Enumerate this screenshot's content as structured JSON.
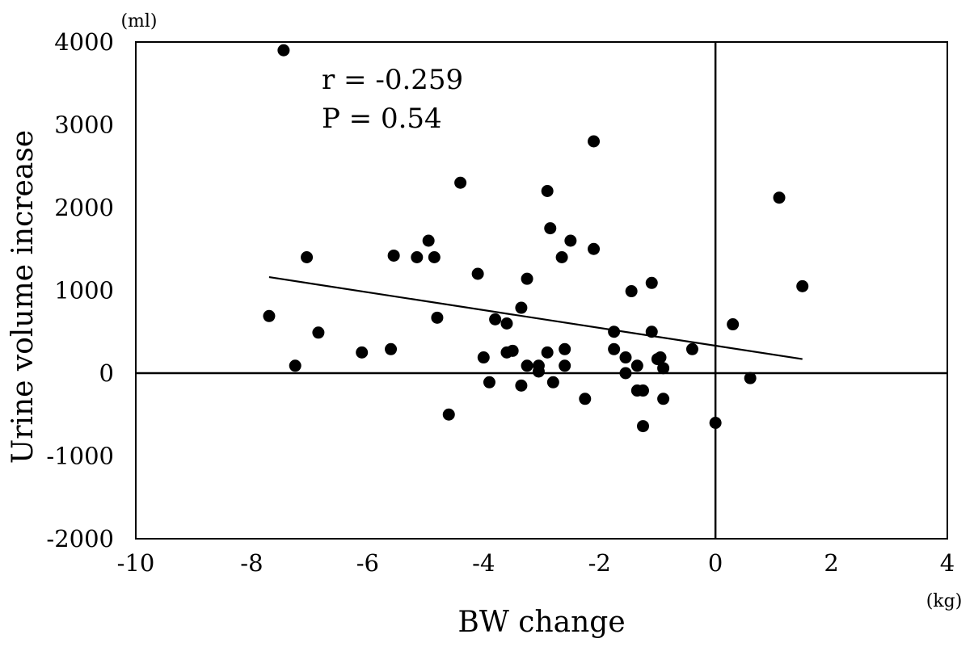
{
  "chart_data": {
    "type": "scatter",
    "title": "",
    "xlabel": "BW change",
    "ylabel": "Urine volume increase",
    "x_unit": "(kg)",
    "y_unit": "(ml)",
    "xlim": [
      -10,
      4
    ],
    "ylim": [
      -2000,
      4000
    ],
    "x_ticks": [
      -10,
      -8,
      -6,
      -4,
      -2,
      0,
      2,
      4
    ],
    "y_ticks": [
      4000,
      3000,
      2000,
      1000,
      0,
      -1000,
      -2000
    ],
    "x_tick_labels": [
      "-10",
      "-8",
      "-6",
      "-4",
      "-2",
      "0",
      "2",
      "4"
    ],
    "y_tick_labels": [
      "4000",
      "3000",
      "2000",
      "1000",
      "0",
      "-1000",
      "-2000"
    ],
    "grid": false,
    "reference_lines": {
      "x": 0,
      "y": 0
    },
    "annotations": [
      "r = -0.259",
      "P = 0.54"
    ],
    "trendline": {
      "x": [
        -7.7,
        1.5
      ],
      "y": [
        1160,
        170
      ]
    },
    "points": [
      {
        "x": -7.45,
        "y": 3900
      },
      {
        "x": -7.7,
        "y": 690
      },
      {
        "x": -7.25,
        "y": 90
      },
      {
        "x": -7.05,
        "y": 1400
      },
      {
        "x": -6.85,
        "y": 490
      },
      {
        "x": -6.1,
        "y": 250
      },
      {
        "x": -5.6,
        "y": 290
      },
      {
        "x": -5.55,
        "y": 1420
      },
      {
        "x": -5.15,
        "y": 1400
      },
      {
        "x": -4.95,
        "y": 1600
      },
      {
        "x": -4.85,
        "y": 1400
      },
      {
        "x": -4.8,
        "y": 670
      },
      {
        "x": -4.6,
        "y": -500
      },
      {
        "x": -4.4,
        "y": 2300
      },
      {
        "x": -4.1,
        "y": 1200
      },
      {
        "x": -4.0,
        "y": 190
      },
      {
        "x": -3.9,
        "y": -110
      },
      {
        "x": -3.8,
        "y": 650
      },
      {
        "x": -3.6,
        "y": 600
      },
      {
        "x": -3.6,
        "y": 250
      },
      {
        "x": -3.5,
        "y": 270
      },
      {
        "x": -3.35,
        "y": 790
      },
      {
        "x": -3.35,
        "y": -150
      },
      {
        "x": -3.25,
        "y": 1140
      },
      {
        "x": -3.25,
        "y": 90
      },
      {
        "x": -3.05,
        "y": 90
      },
      {
        "x": -3.05,
        "y": 20
      },
      {
        "x": -2.9,
        "y": 2200
      },
      {
        "x": -2.9,
        "y": 250
      },
      {
        "x": -2.85,
        "y": 1750
      },
      {
        "x": -2.8,
        "y": -110
      },
      {
        "x": -2.65,
        "y": 1400
      },
      {
        "x": -2.6,
        "y": 290
      },
      {
        "x": -2.6,
        "y": 90
      },
      {
        "x": -2.5,
        "y": 1600
      },
      {
        "x": -2.25,
        "y": -310
      },
      {
        "x": -2.1,
        "y": 2800
      },
      {
        "x": -2.1,
        "y": 1500
      },
      {
        "x": -1.75,
        "y": 500
      },
      {
        "x": -1.75,
        "y": 290
      },
      {
        "x": -1.55,
        "y": 190
      },
      {
        "x": -1.55,
        "y": 0
      },
      {
        "x": -1.45,
        "y": 990
      },
      {
        "x": -1.35,
        "y": 90
      },
      {
        "x": -1.35,
        "y": -210
      },
      {
        "x": -1.25,
        "y": -210
      },
      {
        "x": -1.25,
        "y": -640
      },
      {
        "x": -1.1,
        "y": 1090
      },
      {
        "x": -1.1,
        "y": 500
      },
      {
        "x": -1.0,
        "y": 170
      },
      {
        "x": -0.95,
        "y": 190
      },
      {
        "x": -0.9,
        "y": 60
      },
      {
        "x": -0.9,
        "y": -310
      },
      {
        "x": -0.4,
        "y": 290
      },
      {
        "x": 0.0,
        "y": -600
      },
      {
        "x": 0.3,
        "y": 590
      },
      {
        "x": 0.6,
        "y": -60
      },
      {
        "x": 1.1,
        "y": 2120
      },
      {
        "x": 1.5,
        "y": 1050
      }
    ]
  }
}
